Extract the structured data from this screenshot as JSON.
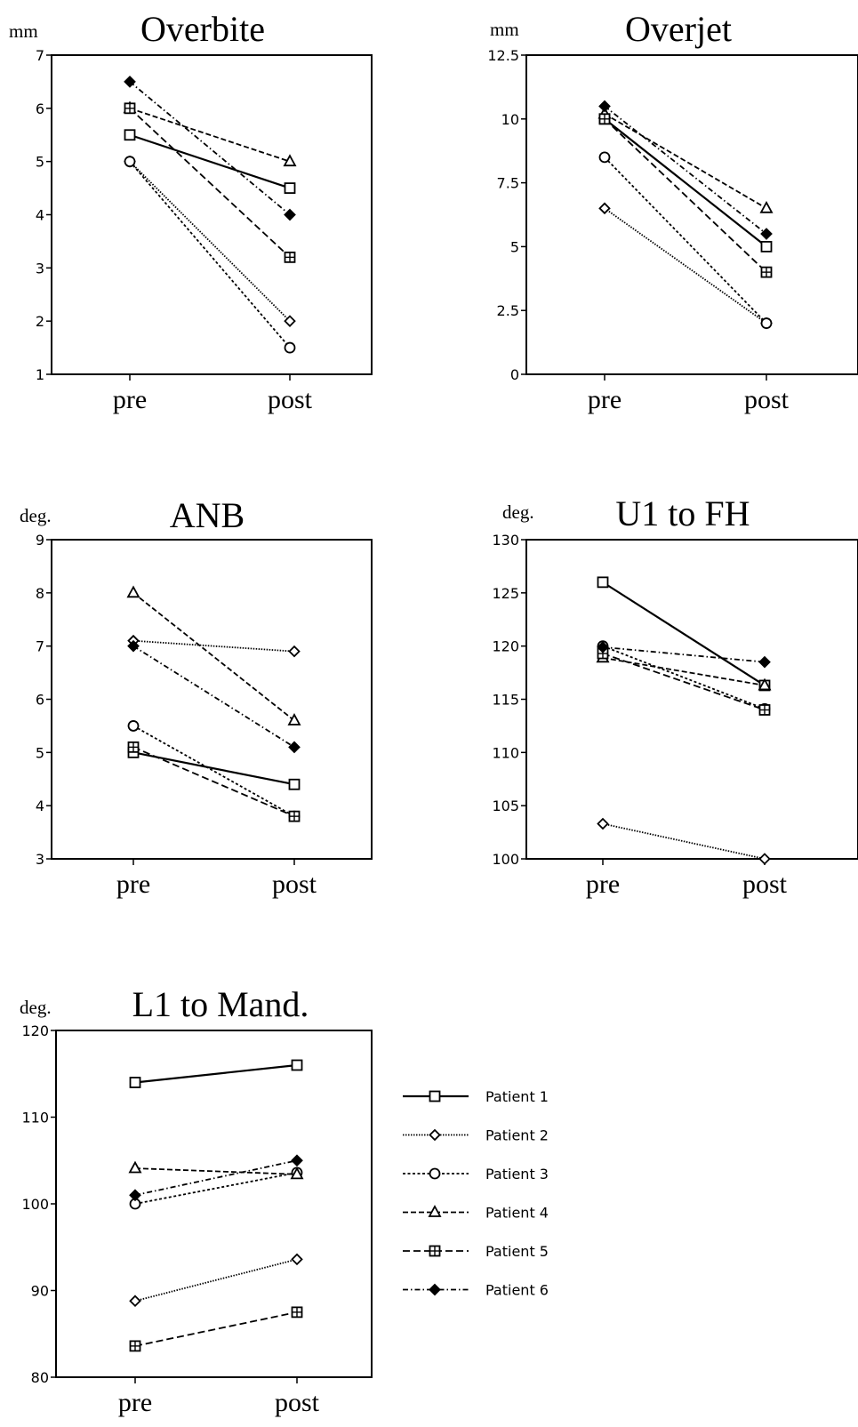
{
  "chart_data": [
    {
      "type": "line",
      "title": "Overbite",
      "unit": "mm",
      "categories": [
        "pre",
        "post"
      ],
      "ylim": [
        1,
        7
      ],
      "yticks": [
        "1",
        "2",
        "3",
        "4",
        "5",
        "6",
        "7"
      ],
      "series": [
        {
          "name": "Patient 1",
          "values": [
            5.5,
            4.5
          ]
        },
        {
          "name": "Patient 2",
          "values": [
            5.0,
            2.0
          ]
        },
        {
          "name": "Patient 3",
          "values": [
            5.0,
            1.5
          ]
        },
        {
          "name": "Patient 4",
          "values": [
            6.0,
            5.0
          ]
        },
        {
          "name": "Patient 5",
          "values": [
            6.0,
            3.2
          ]
        },
        {
          "name": "Patient 6",
          "values": [
            6.5,
            4.0
          ]
        }
      ]
    },
    {
      "type": "line",
      "title": "Overjet",
      "unit": "mm",
      "categories": [
        "pre",
        "post"
      ],
      "ylim": [
        0,
        12.5
      ],
      "yticks": [
        "0",
        "2.5",
        "5",
        "7.5",
        "10",
        "12.5"
      ],
      "series": [
        {
          "name": "Patient 1",
          "values": [
            10.0,
            5.0
          ]
        },
        {
          "name": "Patient 2",
          "values": [
            6.5,
            2.0
          ]
        },
        {
          "name": "Patient 3",
          "values": [
            8.5,
            2.0
          ]
        },
        {
          "name": "Patient 4",
          "values": [
            10.2,
            6.5
          ]
        },
        {
          "name": "Patient 5",
          "values": [
            10.0,
            4.0
          ]
        },
        {
          "name": "Patient 6",
          "values": [
            10.5,
            5.5
          ]
        }
      ]
    },
    {
      "type": "line",
      "title": "ANB",
      "unit": "deg.",
      "categories": [
        "pre",
        "post"
      ],
      "ylim": [
        3,
        9
      ],
      "yticks": [
        "3",
        "4",
        "5",
        "6",
        "7",
        "8",
        "9"
      ],
      "series": [
        {
          "name": "Patient 1",
          "values": [
            5.0,
            4.4
          ]
        },
        {
          "name": "Patient 2",
          "values": [
            7.1,
            6.9
          ]
        },
        {
          "name": "Patient 3",
          "values": [
            5.5,
            3.8
          ]
        },
        {
          "name": "Patient 4",
          "values": [
            8.0,
            5.6
          ]
        },
        {
          "name": "Patient 5",
          "values": [
            5.1,
            3.8
          ]
        },
        {
          "name": "Patient 6",
          "values": [
            7.0,
            5.1
          ]
        }
      ]
    },
    {
      "type": "line",
      "title": "U1 to FH",
      "unit": "deg.",
      "categories": [
        "pre",
        "post"
      ],
      "ylim": [
        100,
        130
      ],
      "yticks": [
        "100",
        "105",
        "110",
        "115",
        "120",
        "125",
        "130"
      ],
      "series": [
        {
          "name": "Patient 1",
          "values": [
            126.0,
            116.3
          ]
        },
        {
          "name": "Patient 2",
          "values": [
            103.3,
            100.0
          ]
        },
        {
          "name": "Patient 3",
          "values": [
            120.0,
            114.1
          ]
        },
        {
          "name": "Patient 4",
          "values": [
            118.9,
            116.3
          ]
        },
        {
          "name": "Patient 5",
          "values": [
            119.3,
            114.0
          ]
        },
        {
          "name": "Patient 6",
          "values": [
            119.9,
            118.5
          ]
        }
      ]
    },
    {
      "type": "line",
      "title": "L1 to Mand.",
      "unit": "deg.",
      "categories": [
        "pre",
        "post"
      ],
      "ylim": [
        80,
        120
      ],
      "yticks": [
        "80",
        "90",
        "100",
        "110",
        "120"
      ],
      "series": [
        {
          "name": "Patient 1",
          "values": [
            114.0,
            116.0
          ]
        },
        {
          "name": "Patient 2",
          "values": [
            88.8,
            93.6
          ]
        },
        {
          "name": "Patient 3",
          "values": [
            100.0,
            103.6
          ]
        },
        {
          "name": "Patient 4",
          "values": [
            104.1,
            103.4
          ]
        },
        {
          "name": "Patient 5",
          "values": [
            83.6,
            87.5
          ]
        },
        {
          "name": "Patient 6",
          "values": [
            101.0,
            105.0
          ]
        }
      ]
    }
  ],
  "legend": {
    "entries": [
      {
        "label": "Patient 1",
        "marker": "square",
        "dash": "solid"
      },
      {
        "label": "Patient 2",
        "marker": "diamond",
        "dash": "dotted"
      },
      {
        "label": "Patient 3",
        "marker": "circle",
        "dash": "short-dash"
      },
      {
        "label": "Patient 4",
        "marker": "triangle",
        "dash": "dash"
      },
      {
        "label": "Patient 5",
        "marker": "crossed-square",
        "dash": "long-dash"
      },
      {
        "label": "Patient 6",
        "marker": "filled-diamond",
        "dash": "dash-dot"
      }
    ]
  }
}
